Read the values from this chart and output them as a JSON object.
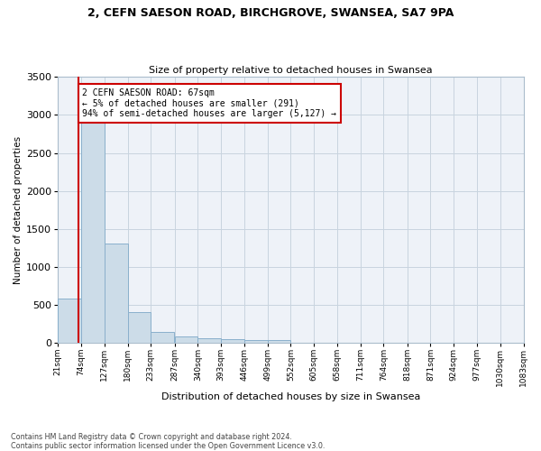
{
  "title_line1": "2, CEFN SAESON ROAD, BIRCHGROVE, SWANSEA, SA7 9PA",
  "title_line2": "Size of property relative to detached houses in Swansea",
  "xlabel": "Distribution of detached houses by size in Swansea",
  "ylabel": "Number of detached properties",
  "bar_color": "#ccdce8",
  "bar_edge_color": "#8ab0cc",
  "property_line_color": "#cc0000",
  "property_value": 67,
  "annotation_line1": "2 CEFN SAESON ROAD: 67sqm",
  "annotation_line2": "← 5% of detached houses are smaller (291)",
  "annotation_line3": "94% of semi-detached houses are larger (5,127) →",
  "annotation_box_facecolor": "#ffffff",
  "annotation_box_edgecolor": "#cc0000",
  "footnote_line1": "Contains HM Land Registry data © Crown copyright and database right 2024.",
  "footnote_line2": "Contains public sector information licensed under the Open Government Licence v3.0.",
  "bins": [
    21,
    74,
    127,
    180,
    233,
    287,
    340,
    393,
    446,
    499,
    552,
    605,
    658,
    711,
    764,
    818,
    871,
    924,
    977,
    1030,
    1083
  ],
  "counts": [
    580,
    2920,
    1310,
    410,
    150,
    90,
    65,
    55,
    45,
    45,
    0,
    0,
    0,
    0,
    0,
    0,
    0,
    0,
    0,
    0
  ],
  "ylim": [
    0,
    3500
  ],
  "yticks": [
    0,
    500,
    1000,
    1500,
    2000,
    2500,
    3000,
    3500
  ],
  "xlim": [
    21,
    1083
  ],
  "background_color": "#eef2f8",
  "grid_color": "#c8d4df",
  "figsize": [
    6.0,
    5.0
  ],
  "dpi": 100
}
